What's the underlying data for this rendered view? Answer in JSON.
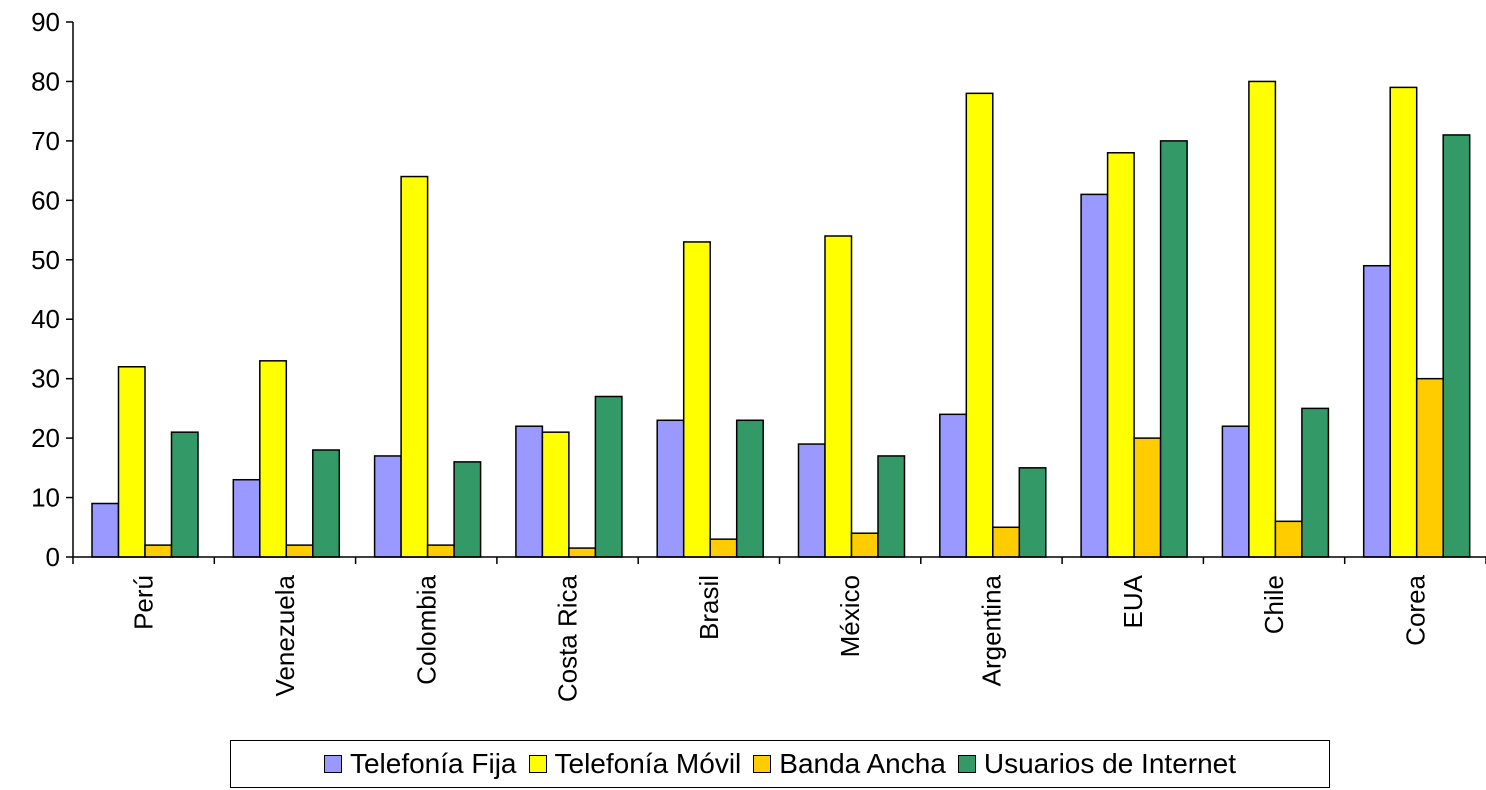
{
  "chart_data": {
    "type": "bar",
    "categories": [
      "Perú",
      "Venezuela",
      "Colombia",
      "Costa Rica",
      "Brasil",
      "México",
      "Argentina",
      "EUA",
      "Chile",
      "Corea"
    ],
    "series": [
      {
        "name": "Telefonía Fija",
        "color": "#9999ff",
        "values": [
          9,
          13,
          17,
          22,
          23,
          19,
          24,
          61,
          22,
          49
        ]
      },
      {
        "name": "Telefonía Móvil",
        "color": "#ffff00",
        "values": [
          32,
          33,
          64,
          21,
          53,
          54,
          78,
          68,
          80,
          79
        ]
      },
      {
        "name": "Banda Ancha",
        "color": "#ffcc00",
        "values": [
          2,
          2,
          2,
          1.5,
          3,
          4,
          5,
          20,
          6,
          30
        ]
      },
      {
        "name": "Usuarios de Internet",
        "color": "#339966",
        "values": [
          21,
          18,
          16,
          27,
          23,
          17,
          15,
          70,
          25,
          71
        ]
      }
    ],
    "ylim": [
      0,
      90
    ],
    "yticks": [
      0,
      10,
      20,
      30,
      40,
      50,
      60,
      70,
      80,
      90
    ],
    "title": "",
    "xlabel": "",
    "ylabel": "",
    "grid": false,
    "legend_position": "bottom"
  }
}
